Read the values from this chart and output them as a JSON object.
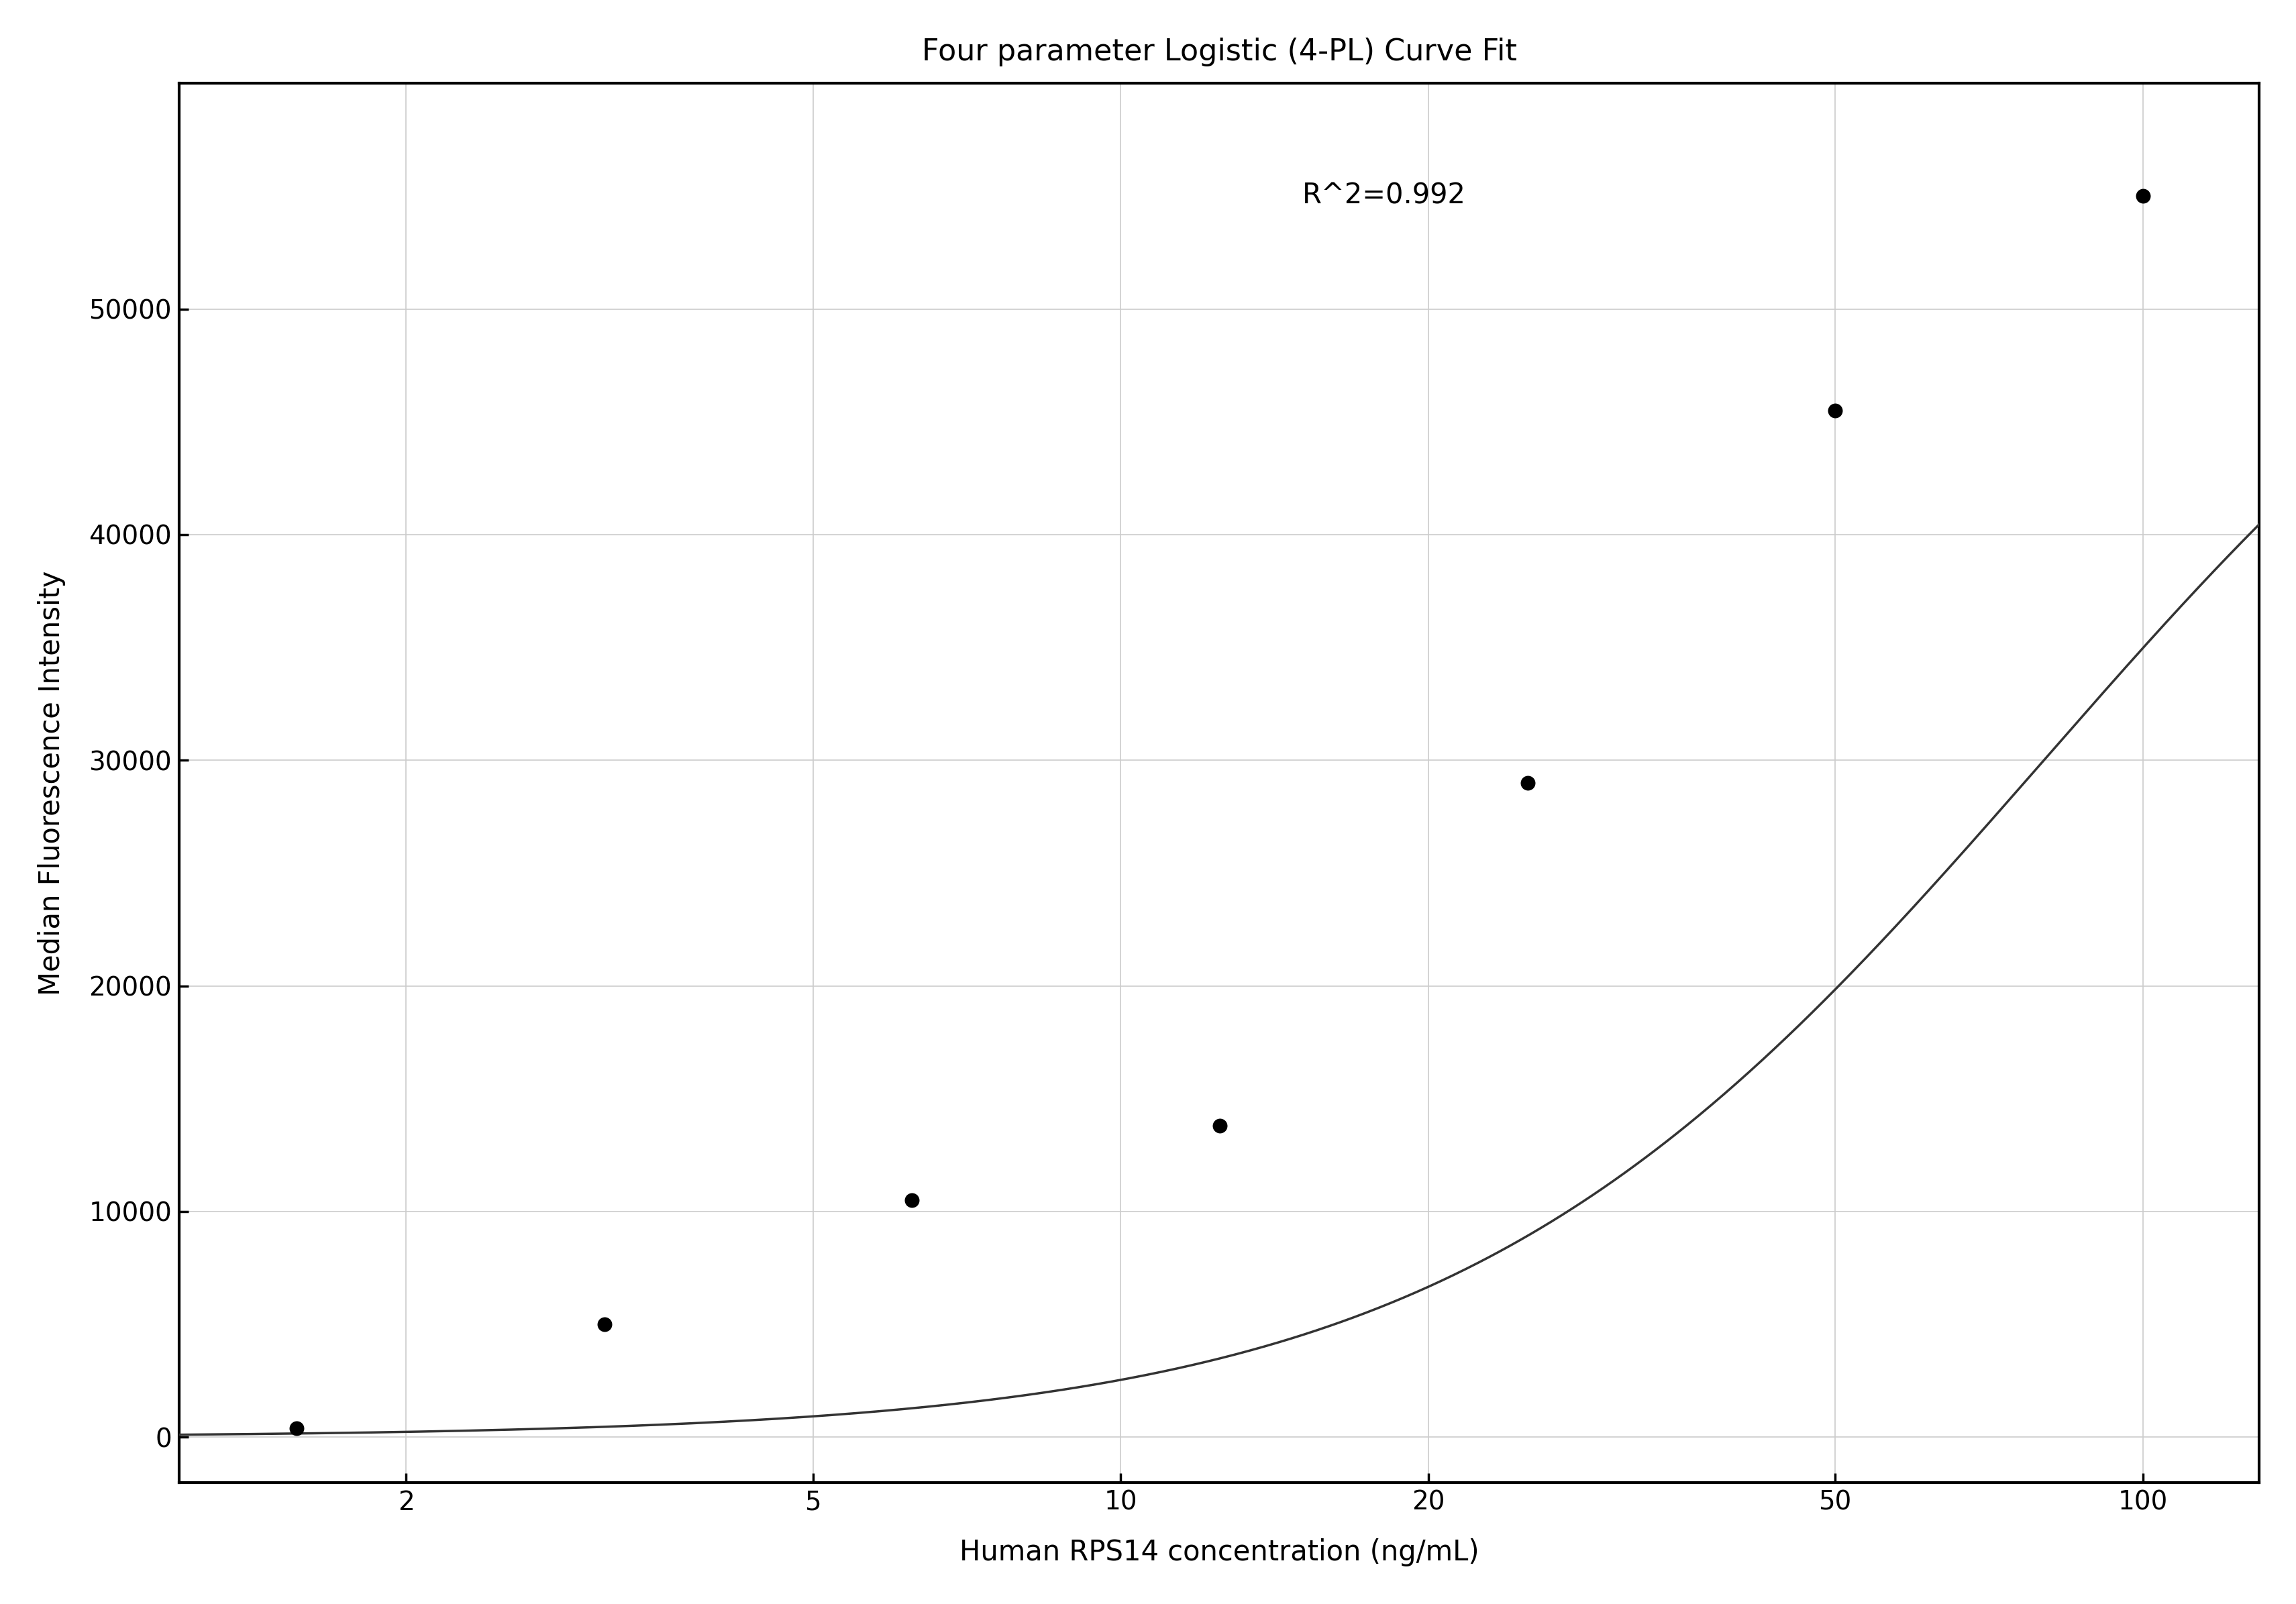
{
  "title": "Four parameter Logistic (4-PL) Curve Fit",
  "xlabel": "Human RPS14 concentration (ng/mL)",
  "ylabel": "Median Fluorescence Intensity",
  "r_squared": "R^2=0.992",
  "data_x": [
    1.5625,
    3.125,
    6.25,
    12.5,
    25,
    50,
    100
  ],
  "data_y": [
    400,
    5000,
    10500,
    13800,
    29000,
    45500,
    55000
  ],
  "xlim_log": [
    1.2,
    130
  ],
  "ylim": [
    -2000,
    60000
  ],
  "yticks": [
    0,
    10000,
    20000,
    30000,
    40000,
    50000
  ],
  "xticks": [
    2,
    5,
    10,
    20,
    50,
    100
  ],
  "grid_color": "#cccccc",
  "line_color": "#333333",
  "dot_color": "#000000",
  "background_color": "#ffffff",
  "title_fontsize": 32,
  "label_fontsize": 30,
  "tick_fontsize": 28,
  "annotation_fontsize": 30,
  "spine_linewidth": 3.0,
  "line_linewidth": 2.5,
  "dot_size": 250
}
